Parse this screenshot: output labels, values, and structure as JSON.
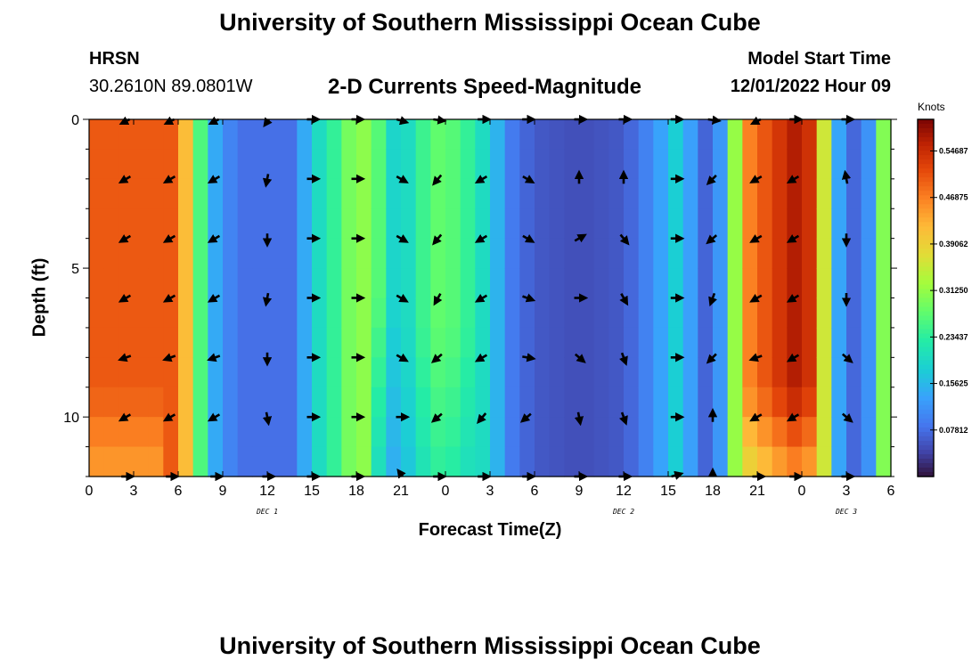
{
  "page": {
    "title": "University of Southern Mississippi Ocean Cube",
    "station": "HRSN",
    "coordinates": "30.2610N  89.0801W",
    "subtitle": "2-D Currents Speed-Magnitude",
    "model_start_label": "Model Start Time",
    "model_start_value": "12/01/2022 Hour 09",
    "footer_title": "University of Southern Mississippi Ocean Cube"
  },
  "chart_data": {
    "type": "heatmap",
    "title": "2-D Currents Speed-Magnitude",
    "xlabel": "Forecast Time(Z)",
    "ylabel": "Depth (ft)",
    "x_range_hours": [
      0,
      54
    ],
    "ylim": [
      0,
      12
    ],
    "y_inverted": true,
    "x_ticks": [
      {
        "h": 0,
        "label": "0"
      },
      {
        "h": 3,
        "label": "3"
      },
      {
        "h": 6,
        "label": "6"
      },
      {
        "h": 9,
        "label": "9"
      },
      {
        "h": 12,
        "label": "12"
      },
      {
        "h": 15,
        "label": "15"
      },
      {
        "h": 18,
        "label": "18"
      },
      {
        "h": 21,
        "label": "21"
      },
      {
        "h": 24,
        "label": "0"
      },
      {
        "h": 27,
        "label": "3"
      },
      {
        "h": 30,
        "label": "6"
      },
      {
        "h": 33,
        "label": "9"
      },
      {
        "h": 36,
        "label": "12"
      },
      {
        "h": 39,
        "label": "15"
      },
      {
        "h": 42,
        "label": "18"
      },
      {
        "h": 45,
        "label": "21"
      },
      {
        "h": 48,
        "label": "0"
      },
      {
        "h": 51,
        "label": "3"
      },
      {
        "h": 54,
        "label": "6"
      }
    ],
    "y_ticks": [
      {
        "v": 0,
        "label": "0"
      },
      {
        "v": 5,
        "label": "5"
      },
      {
        "v": 10,
        "label": "10"
      }
    ],
    "day_labels": [
      {
        "h": 12,
        "label": "DEC 1"
      },
      {
        "h": 36,
        "label": "DEC 2"
      },
      {
        "h": 51,
        "label": "DEC 3"
      }
    ],
    "colorbar": {
      "units": "Knots",
      "min": 0,
      "max": 0.6,
      "tick_values": [
        0.078125,
        0.15625,
        0.234375,
        0.3125,
        0.390625,
        0.46875,
        0.546875
      ],
      "tick_labels": [
        "0.07812",
        "0.15625",
        "0.23437",
        "0.31250",
        "0.39062",
        "0.46875",
        "0.54687"
      ]
    },
    "speed_profile": [
      {
        "h": 0,
        "v": 0.5
      },
      {
        "h": 6,
        "v": 0.5
      },
      {
        "h": 7,
        "v": 0.33
      },
      {
        "h": 7.8,
        "v": 0.22
      },
      {
        "h": 8.5,
        "v": 0.14
      },
      {
        "h": 10,
        "v": 0.08
      },
      {
        "h": 13.5,
        "v": 0.08
      },
      {
        "h": 15.5,
        "v": 0.2
      },
      {
        "h": 17,
        "v": 0.26
      },
      {
        "h": 18,
        "v": 0.32
      },
      {
        "h": 19.2,
        "v": 0.29
      },
      {
        "h": 20.5,
        "v": 0.19
      },
      {
        "h": 21.5,
        "v": 0.2
      },
      {
        "h": 23,
        "v": 0.27
      },
      {
        "h": 24,
        "v": 0.28
      },
      {
        "h": 25.5,
        "v": 0.24
      },
      {
        "h": 27,
        "v": 0.18
      },
      {
        "h": 28.5,
        "v": 0.09
      },
      {
        "h": 30,
        "v": 0.06
      },
      {
        "h": 33,
        "v": 0.05
      },
      {
        "h": 36,
        "v": 0.06
      },
      {
        "h": 38,
        "v": 0.11
      },
      {
        "h": 39.5,
        "v": 0.18
      },
      {
        "h": 40.5,
        "v": 0.13
      },
      {
        "h": 41.5,
        "v": 0.07
      },
      {
        "h": 42.5,
        "v": 0.12
      },
      {
        "h": 43.3,
        "v": 0.26
      },
      {
        "h": 44,
        "v": 0.45
      },
      {
        "h": 46,
        "v": 0.52
      },
      {
        "h": 48,
        "v": 0.58
      },
      {
        "h": 49,
        "v": 0.5
      },
      {
        "h": 49.7,
        "v": 0.3
      },
      {
        "h": 50.2,
        "v": 0.18
      },
      {
        "h": 50.8,
        "v": 0.09
      },
      {
        "h": 52,
        "v": 0.06
      },
      {
        "h": 52.8,
        "v": 0.15
      },
      {
        "h": 53.5,
        "v": 0.3
      },
      {
        "h": 54,
        "v": 0.42
      }
    ],
    "arrows": {
      "hours": [
        2.5,
        5.5,
        8.5,
        12,
        15,
        18,
        21,
        23.5,
        26.5,
        29.5,
        33,
        36,
        39.5,
        42,
        45,
        47.5,
        51
      ],
      "depths": [
        0,
        2,
        4,
        6,
        8,
        10,
        12
      ],
      "angles_deg": [
        [
          225,
          225,
          225,
          250,
          0,
          0,
          330,
          345,
          0,
          0,
          0,
          0,
          0,
          345,
          225,
          0,
          0
        ],
        [
          210,
          210,
          210,
          260,
          0,
          0,
          330,
          230,
          210,
          330,
          90,
          90,
          0,
          225,
          210,
          210,
          100
        ],
        [
          210,
          210,
          210,
          270,
          0,
          0,
          330,
          230,
          210,
          330,
          30,
          310,
          0,
          220,
          210,
          210,
          270
        ],
        [
          210,
          210,
          210,
          260,
          0,
          0,
          330,
          240,
          210,
          340,
          0,
          300,
          0,
          250,
          210,
          210,
          270
        ],
        [
          200,
          200,
          200,
          270,
          0,
          0,
          330,
          220,
          210,
          350,
          320,
          290,
          0,
          225,
          200,
          210,
          320
        ],
        [
          210,
          210,
          210,
          280,
          0,
          0,
          0,
          220,
          230,
          220,
          280,
          290,
          0,
          90,
          210,
          210,
          320
        ],
        [
          0,
          0,
          0,
          0,
          0,
          0,
          110,
          0,
          0,
          0,
          0,
          0,
          30,
          90,
          0,
          0,
          0
        ]
      ]
    }
  }
}
